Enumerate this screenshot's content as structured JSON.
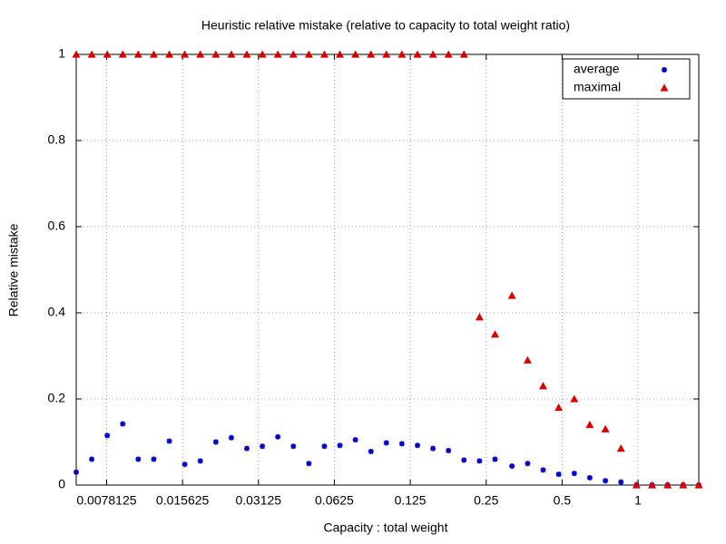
{
  "chart_data": {
    "type": "scatter",
    "title": "Heuristic relative mistake (relative to capacity to total weight ratio)",
    "xlabel": "Capacity : total weight",
    "ylabel": "Relative mistake",
    "xscale": "log",
    "grid": true,
    "legend": "top right",
    "xlim": [
      0.005921,
      1.741
    ],
    "ylim": [
      0,
      1
    ],
    "xticks": [
      0.0078125,
      0.015625,
      0.03125,
      0.0625,
      0.125,
      0.25,
      0.5,
      1
    ],
    "yticks": [
      0,
      0.2,
      0.4,
      0.6,
      0.8,
      1
    ],
    "x": [
      0.005921,
      0.006822,
      0.00786,
      0.009055,
      0.01043,
      0.01202,
      0.01385,
      0.01595,
      0.01838,
      0.02118,
      0.0244,
      0.02811,
      0.03239,
      0.03731,
      0.04299,
      0.04953,
      0.05706,
      0.06574,
      0.07575,
      0.08727,
      0.1005,
      0.1158,
      0.1335,
      0.1538,
      0.1772,
      0.2041,
      0.2352,
      0.271,
      0.3164,
      0.365,
      0.4204,
      0.4845,
      0.5586,
      0.6437,
      0.7423,
      0.8556,
      0.9862,
      1.137,
      1.31,
      1.51,
      1.741
    ],
    "series": [
      {
        "name": "average",
        "color": "#0000cc",
        "marker": "star",
        "values": [
          0.03,
          0.06,
          0.115,
          0.142,
          0.06,
          0.06,
          0.102,
          0.048,
          0.056,
          0.1,
          0.11,
          0.085,
          0.09,
          0.112,
          0.09,
          0.05,
          0.09,
          0.092,
          0.105,
          0.078,
          0.098,
          0.096,
          0.092,
          0.085,
          0.08,
          0.058,
          0.056,
          0.06,
          0.044,
          0.05,
          0.035,
          0.025,
          0.027,
          0.017,
          0.01,
          0.007,
          0,
          0,
          0,
          0,
          0
        ]
      },
      {
        "name": "maximal",
        "color": "#dd0000",
        "marker": "triangle",
        "values": [
          1,
          1,
          1,
          1,
          1,
          1,
          1,
          1,
          1,
          1,
          1,
          1,
          1,
          1,
          1,
          1,
          1,
          1,
          1,
          1,
          1,
          1,
          1,
          1,
          1,
          1,
          0.39,
          0.35,
          0.44,
          0.29,
          0.23,
          0.18,
          0.2,
          0.14,
          0.13,
          0.085,
          0,
          0,
          0,
          0,
          0
        ]
      }
    ]
  }
}
